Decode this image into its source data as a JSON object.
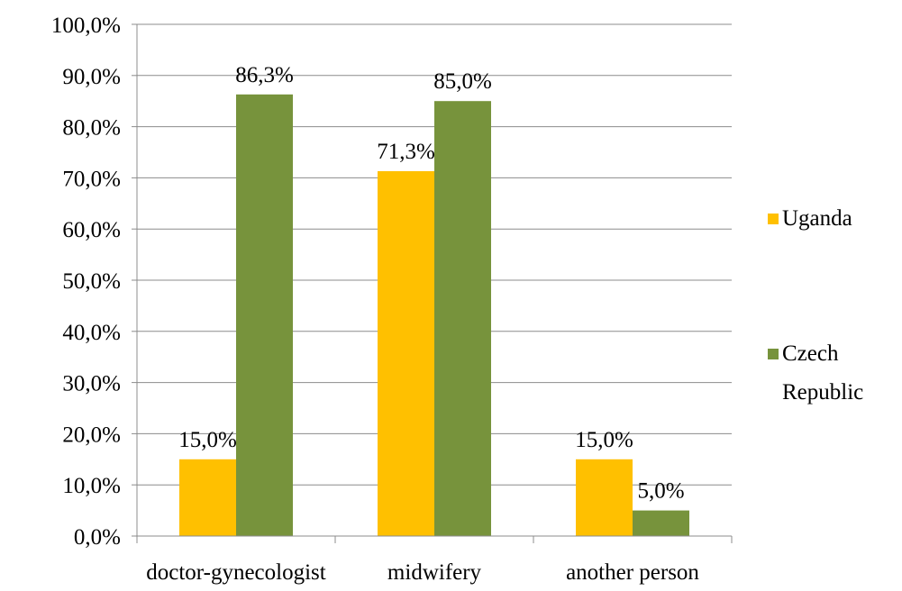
{
  "chart_data": {
    "type": "bar",
    "title": "",
    "xlabel": "",
    "ylabel": "",
    "ylim": [
      0,
      100
    ],
    "y_ticks": [
      "0,0%",
      "10,0%",
      "20,0%",
      "30,0%",
      "40,0%",
      "50,0%",
      "60,0%",
      "70,0%",
      "80,0%",
      "90,0%",
      "100,0%"
    ],
    "categories": [
      "doctor-gynecologist",
      "midwifery",
      "another person"
    ],
    "series": [
      {
        "name": "Uganda",
        "color": "#ffc000",
        "values": [
          15.0,
          71.3,
          15.0
        ],
        "labels": [
          "15,0%",
          "71,3%",
          "15,0%"
        ]
      },
      {
        "name": "Czech Republic",
        "legend_lines": [
          "Czech",
          "Republic"
        ],
        "color": "#77933c",
        "values": [
          86.3,
          85.0,
          5.0
        ],
        "labels": [
          "86,3%",
          "85,0%",
          "5,0%"
        ]
      }
    ],
    "grid": true,
    "legend_position": "right"
  }
}
